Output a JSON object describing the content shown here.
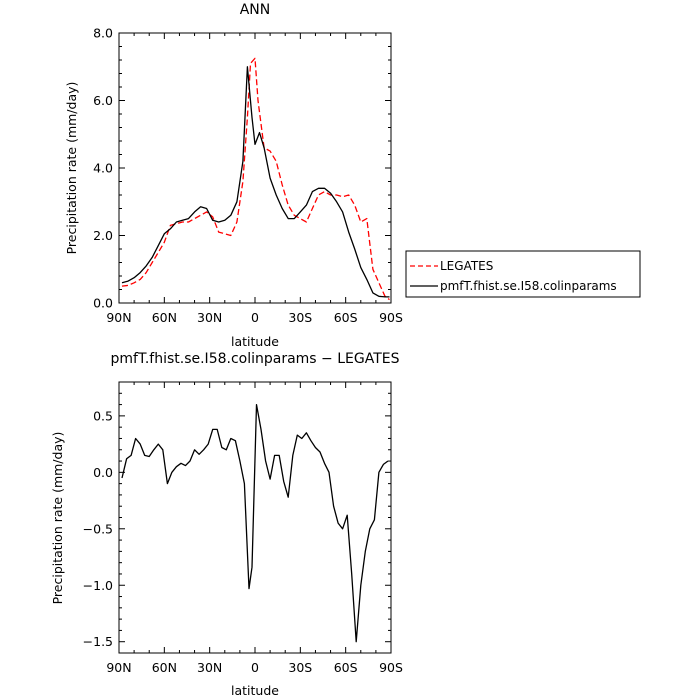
{
  "chart_data": [
    {
      "type": "line",
      "title": "ANN",
      "xlabel": "latitude",
      "ylabel": "Precipitation rate (mm/day)",
      "xlim": [
        90,
        -90
      ],
      "ylim": [
        0,
        8
      ],
      "x_ticks": [
        90,
        60,
        30,
        0,
        -30,
        -60,
        -90
      ],
      "x_tick_labels": [
        "90N",
        "60N",
        "30N",
        "0",
        "30S",
        "60S",
        "90S"
      ],
      "y_ticks": [
        0,
        2,
        4,
        6,
        8
      ],
      "y_tick_labels": [
        "0.0",
        "2.0",
        "4.0",
        "6.0",
        "8.0"
      ],
      "grid": false,
      "legend": "right-outside",
      "series": [
        {
          "name": "LEGATES",
          "color": "#ff0000",
          "dash": "dashed",
          "x": [
            88,
            84,
            80,
            76,
            72,
            68,
            64,
            60,
            56,
            52,
            48,
            44,
            40,
            36,
            32,
            28,
            24,
            20,
            16,
            12,
            8,
            5,
            3,
            0,
            -2,
            -6,
            -10,
            -14,
            -18,
            -22,
            -26,
            -30,
            -34,
            -38,
            -42,
            -46,
            -50,
            -54,
            -58,
            -62,
            -66,
            -70,
            -74,
            -78,
            -82,
            -86,
            -89
          ],
          "y": [
            0.5,
            0.52,
            0.6,
            0.7,
            0.9,
            1.2,
            1.5,
            1.8,
            2.3,
            2.35,
            2.4,
            2.4,
            2.5,
            2.6,
            2.7,
            2.55,
            2.1,
            2.05,
            2.0,
            2.4,
            3.6,
            5.5,
            7.1,
            7.25,
            6.0,
            4.6,
            4.5,
            4.2,
            3.5,
            2.9,
            2.6,
            2.5,
            2.4,
            2.8,
            3.2,
            3.3,
            3.2,
            3.2,
            3.15,
            3.2,
            2.9,
            2.4,
            2.5,
            1.0,
            0.6,
            0.2,
            0.1
          ]
        },
        {
          "name": "pmfT.fhist.se.I58.colinparams",
          "color": "#000000",
          "dash": "solid",
          "x": [
            88,
            84,
            80,
            76,
            72,
            68,
            64,
            60,
            56,
            52,
            48,
            44,
            40,
            36,
            32,
            28,
            24,
            20,
            16,
            12,
            8,
            5,
            2,
            0,
            -3,
            -6,
            -10,
            -14,
            -18,
            -22,
            -26,
            -30,
            -34,
            -38,
            -42,
            -46,
            -50,
            -54,
            -58,
            -62,
            -66,
            -70,
            -74,
            -78,
            -82,
            -86,
            -89
          ],
          "y": [
            0.6,
            0.65,
            0.75,
            0.9,
            1.1,
            1.35,
            1.7,
            2.05,
            2.2,
            2.4,
            2.45,
            2.5,
            2.7,
            2.85,
            2.8,
            2.45,
            2.4,
            2.45,
            2.6,
            3.0,
            4.2,
            7.0,
            5.5,
            4.7,
            5.05,
            4.6,
            3.7,
            3.2,
            2.8,
            2.5,
            2.5,
            2.7,
            2.9,
            3.3,
            3.4,
            3.4,
            3.25,
            3.0,
            2.7,
            2.1,
            1.6,
            1.05,
            0.7,
            0.3,
            0.2,
            0.18,
            0.18
          ]
        }
      ]
    },
    {
      "type": "line",
      "title": "pmfT.fhist.se.I58.colinparams − LEGATES",
      "xlabel": "latitude",
      "ylabel": "Precipitation rate (mm/day)",
      "xlim": [
        90,
        -90
      ],
      "ylim": [
        -1.6,
        0.8
      ],
      "x_ticks": [
        90,
        60,
        30,
        0,
        -30,
        -60,
        -90
      ],
      "x_tick_labels": [
        "90N",
        "60N",
        "30N",
        "0",
        "30S",
        "60S",
        "90S"
      ],
      "y_ticks": [
        0.5,
        0,
        -0.5,
        -1,
        -1.5
      ],
      "y_tick_labels": [
        "0.5",
        "0.0",
        "−0.5",
        "−1.0",
        "−1.5"
      ],
      "grid": false,
      "series": [
        {
          "color": "#000000",
          "dash": "solid",
          "x": [
            88,
            85,
            82,
            79,
            76,
            73,
            70,
            67,
            64,
            61,
            58,
            55,
            52,
            49,
            46,
            43,
            40,
            37,
            34,
            31,
            28,
            25,
            22,
            19,
            16,
            13,
            10,
            7,
            4,
            2,
            -1,
            -4,
            -7,
            -10,
            -13,
            -16,
            -19,
            -22,
            -25,
            -28,
            -31,
            -34,
            -37,
            -40,
            -43,
            -46,
            -49,
            -52,
            -55,
            -58,
            -61,
            -64,
            -67,
            -70,
            -73,
            -76,
            -79,
            -82,
            -85,
            -88
          ],
          "y": [
            -0.05,
            0.12,
            0.15,
            0.3,
            0.25,
            0.15,
            0.14,
            0.2,
            0.25,
            0.2,
            -0.1,
            0.0,
            0.05,
            0.08,
            0.06,
            0.1,
            0.2,
            0.16,
            0.2,
            0.25,
            0.38,
            0.38,
            0.22,
            0.2,
            0.3,
            0.28,
            0.1,
            -0.1,
            -1.03,
            -0.84,
            0.6,
            0.38,
            0.1,
            -0.06,
            0.15,
            0.15,
            -0.08,
            -0.22,
            0.15,
            0.33,
            0.3,
            0.35,
            0.28,
            0.22,
            0.18,
            0.08,
            0.0,
            -0.3,
            -0.45,
            -0.5,
            -0.38,
            -0.9,
            -1.5,
            -1.0,
            -0.7,
            -0.5,
            -0.42,
            0.0,
            0.07,
            0.1
          ]
        }
      ]
    }
  ]
}
